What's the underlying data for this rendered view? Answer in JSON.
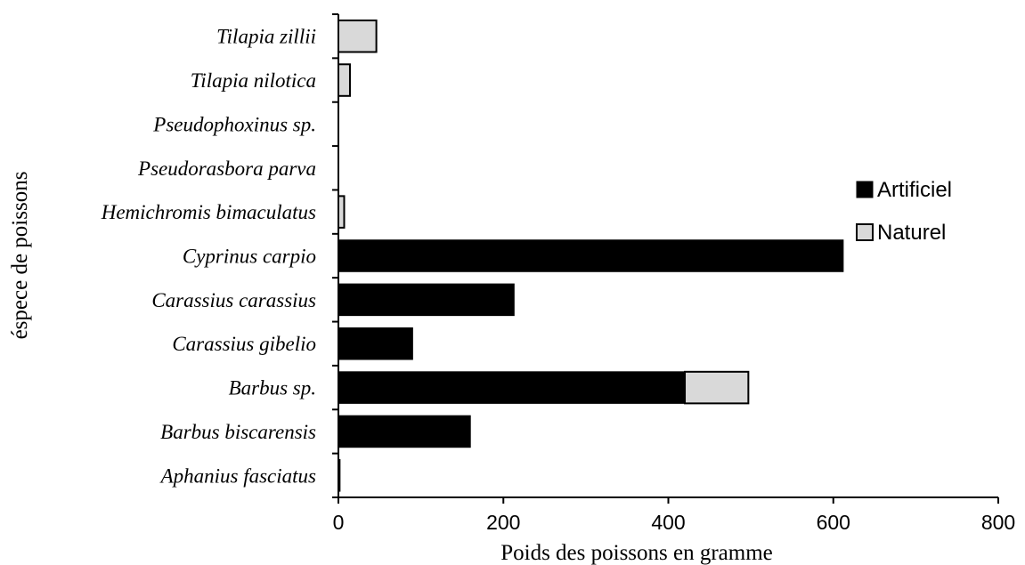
{
  "chart_data": {
    "type": "bar",
    "orientation": "horizontal",
    "stacked": true,
    "categories": [
      "Aphanius fasciatus",
      "Barbus biscarensis",
      "Barbus sp.",
      "Carassius gibelio",
      "Carassius carassius",
      "Cyprinus carpio",
      "Hemichromis bimaculatus",
      "Pseudorasbora parva",
      "Pseudophoxinus sp.",
      "Tilapia nilotica",
      "Tilapia zillii"
    ],
    "series": [
      {
        "name": "Artificiel",
        "color": "#000000",
        "values": [
          2,
          160,
          420,
          90,
          213,
          612,
          0,
          0,
          0,
          0,
          0
        ]
      },
      {
        "name": "Naturel",
        "color": "#d9d9d9",
        "values": [
          0,
          0,
          77,
          0,
          0,
          0,
          7,
          0,
          0,
          14,
          46
        ]
      }
    ],
    "xlabel": "Poids des poissons en gramme",
    "ylabel": "éspece de poissons",
    "xlim": [
      0,
      800
    ],
    "xticks": [
      "0",
      "200",
      "400",
      "600",
      "800"
    ],
    "grid": false,
    "legend_position": "right"
  }
}
